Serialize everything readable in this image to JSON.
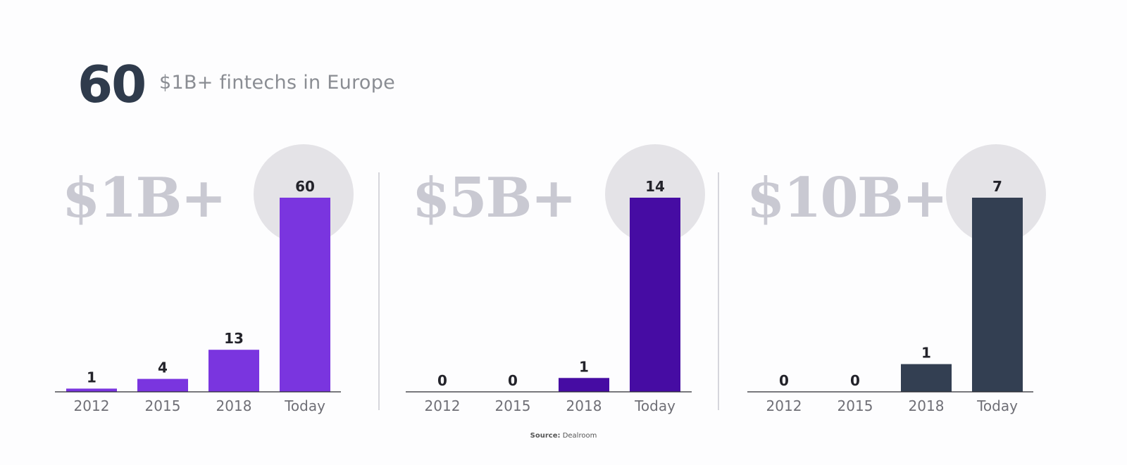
{
  "header": {
    "big_number": "60",
    "headline": "$1B+ fintechs in Europe"
  },
  "source": {
    "label": "Source:",
    "name": "Dealroom"
  },
  "colors": {
    "panel1": "#7a35df",
    "panel2": "#460ca3",
    "panel3": "#333f52",
    "halo": "#e4e3e7"
  },
  "chart_data": [
    {
      "type": "bar",
      "title": "$1B+",
      "categories": [
        "2012",
        "2015",
        "2018",
        "Today"
      ],
      "values": [
        1,
        4,
        13,
        60
      ]
    },
    {
      "type": "bar",
      "title": "$5B+",
      "categories": [
        "2012",
        "2015",
        "2018",
        "Today"
      ],
      "values": [
        0,
        0,
        1,
        14
      ]
    },
    {
      "type": "bar",
      "title": "$10B+",
      "categories": [
        "2012",
        "2015",
        "2018",
        "Today"
      ],
      "values": [
        0,
        0,
        1,
        7
      ]
    }
  ]
}
